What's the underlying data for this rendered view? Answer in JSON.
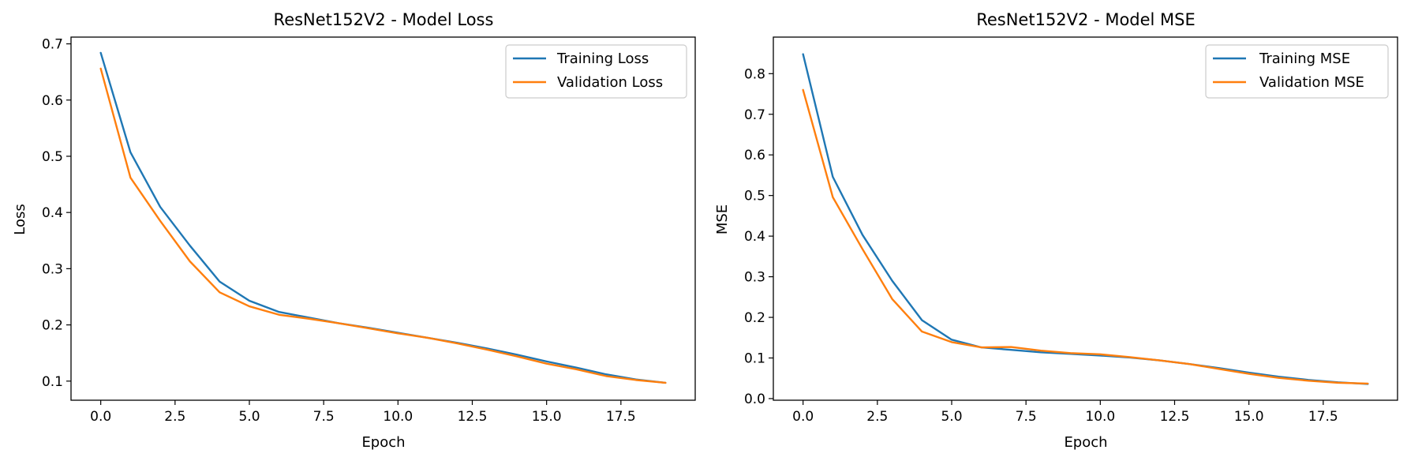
{
  "colors": {
    "training": "#1f77b4",
    "validation": "#ff7f0e"
  },
  "chart_data": [
    {
      "type": "line",
      "title": "ResNet152V2 - Model Loss",
      "xlabel": "Epoch",
      "ylabel": "Loss",
      "xlim": [
        -1.0,
        20.0
      ],
      "ylim": [
        0.066,
        0.712
      ],
      "x_ticks": [
        0.0,
        2.5,
        5.0,
        7.5,
        10.0,
        12.5,
        15.0,
        17.5
      ],
      "x_tick_labels": [
        "0.0",
        "2.5",
        "5.0",
        "7.5",
        "10.0",
        "12.5",
        "15.0",
        "17.5"
      ],
      "y_ticks": [
        0.1,
        0.2,
        0.3,
        0.4,
        0.5,
        0.6,
        0.7
      ],
      "y_tick_labels": [
        "0.1",
        "0.2",
        "0.3",
        "0.4",
        "0.5",
        "0.6",
        "0.7"
      ],
      "grid": false,
      "legend_position": "top-right",
      "x": [
        0,
        1,
        2,
        3,
        4,
        5,
        6,
        7,
        8,
        9,
        10,
        11,
        12,
        13,
        14,
        15,
        16,
        17,
        18,
        19
      ],
      "series": [
        {
          "name": "Training Loss",
          "color_key": "training",
          "values": [
            0.684,
            0.507,
            0.41,
            0.341,
            0.277,
            0.243,
            0.223,
            0.213,
            0.203,
            0.195,
            0.186,
            0.177,
            0.168,
            0.158,
            0.147,
            0.135,
            0.124,
            0.112,
            0.103,
            0.097
          ]
        },
        {
          "name": "Validation Loss",
          "color_key": "validation",
          "values": [
            0.656,
            0.462,
            0.385,
            0.313,
            0.258,
            0.233,
            0.218,
            0.211,
            0.203,
            0.194,
            0.185,
            0.177,
            0.167,
            0.156,
            0.144,
            0.131,
            0.121,
            0.109,
            0.102,
            0.097
          ]
        }
      ]
    },
    {
      "type": "line",
      "title": "ResNet152V2 - Model MSE",
      "xlabel": "Epoch",
      "ylabel": "MSE",
      "xlim": [
        -1.0,
        20.0
      ],
      "ylim": [
        -0.004,
        0.89
      ],
      "x_ticks": [
        0.0,
        2.5,
        5.0,
        7.5,
        10.0,
        12.5,
        15.0,
        17.5
      ],
      "x_tick_labels": [
        "0.0",
        "2.5",
        "5.0",
        "7.5",
        "10.0",
        "12.5",
        "15.0",
        "17.5"
      ],
      "y_ticks": [
        0.0,
        0.1,
        0.2,
        0.3,
        0.4,
        0.5,
        0.6,
        0.7,
        0.8
      ],
      "y_tick_labels": [
        "0.0",
        "0.1",
        "0.2",
        "0.3",
        "0.4",
        "0.5",
        "0.6",
        "0.7",
        "0.8"
      ],
      "grid": false,
      "legend_position": "top-right",
      "x": [
        0,
        1,
        2,
        3,
        4,
        5,
        6,
        7,
        8,
        9,
        10,
        11,
        12,
        13,
        14,
        15,
        16,
        17,
        18,
        19
      ],
      "series": [
        {
          "name": "Training MSE",
          "color_key": "training",
          "values": [
            0.848,
            0.546,
            0.403,
            0.29,
            0.193,
            0.145,
            0.126,
            0.12,
            0.114,
            0.11,
            0.106,
            0.101,
            0.094,
            0.085,
            0.075,
            0.064,
            0.054,
            0.046,
            0.04,
            0.036
          ]
        },
        {
          "name": "Validation MSE",
          "color_key": "validation",
          "values": [
            0.76,
            0.496,
            0.368,
            0.245,
            0.165,
            0.139,
            0.126,
            0.127,
            0.118,
            0.112,
            0.109,
            0.102,
            0.094,
            0.085,
            0.073,
            0.061,
            0.051,
            0.044,
            0.039,
            0.037
          ]
        }
      ]
    }
  ]
}
